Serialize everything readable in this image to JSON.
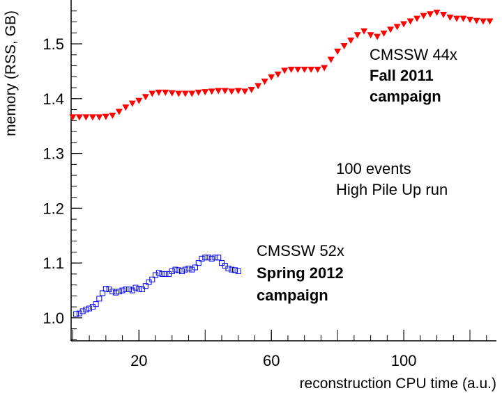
{
  "chart_data": {
    "type": "scatter",
    "x_label": "reconstruction CPU time (a.u.)",
    "y_label": "memory (RSS, GB)",
    "xlim": [
      -0.5,
      128
    ],
    "ylim": [
      0.958,
      1.58
    ],
    "xticks": [
      20,
      60,
      100
    ],
    "yticks": [
      {
        "value": 1,
        "label": "1.0"
      },
      1.1,
      1.2,
      1.3,
      1.4,
      1.5
    ],
    "annotations": [
      {
        "text": "CMSSW 44x"
      },
      {
        "text": "Fall 2011"
      },
      {
        "text": "campaign"
      },
      {
        "text": "100 events"
      },
      {
        "text": "High Pile Up run"
      },
      {
        "text": "CMSSW 52x"
      },
      {
        "text": "Spring 2012"
      },
      {
        "text": "campaign"
      }
    ],
    "series": [
      {
        "color": "#ff0000",
        "marker": "triangle-down",
        "x": [
          0,
          2,
          4,
          6,
          8,
          10,
          12,
          14,
          16,
          18,
          20,
          22,
          24,
          26,
          28,
          30,
          32,
          34,
          36,
          38,
          40,
          42,
          44,
          46,
          48,
          50,
          52,
          54,
          56,
          58,
          60,
          62,
          64,
          66,
          68,
          70,
          72,
          74,
          76,
          78,
          80,
          82,
          84,
          86,
          88,
          90,
          92,
          94,
          96,
          98,
          100,
          102,
          104,
          106,
          108,
          110,
          112,
          114,
          116,
          118,
          120,
          122,
          124,
          126
        ],
        "values": [
          1.365,
          1.365,
          1.365,
          1.365,
          1.365,
          1.366,
          1.368,
          1.375,
          1.383,
          1.39,
          1.395,
          1.402,
          1.408,
          1.41,
          1.41,
          1.409,
          1.408,
          1.408,
          1.408,
          1.41,
          1.411,
          1.412,
          1.413,
          1.413,
          1.412,
          1.413,
          1.412,
          1.415,
          1.422,
          1.43,
          1.438,
          1.443,
          1.45,
          1.452,
          1.452,
          1.452,
          1.452,
          1.452,
          1.455,
          1.47,
          1.485,
          1.495,
          1.505,
          1.515,
          1.522,
          1.515,
          1.512,
          1.518,
          1.525,
          1.53,
          1.535,
          1.54,
          1.545,
          1.55,
          1.553,
          1.556,
          1.552,
          1.547,
          1.545,
          1.545,
          1.543,
          1.541,
          1.54,
          1.54
        ]
      },
      {
        "color": "#0000ee",
        "marker": "square-open",
        "x": [
          1,
          2,
          3,
          4,
          5,
          6,
          7,
          8,
          9,
          10,
          11,
          12,
          13,
          14,
          15,
          16,
          17,
          18,
          19,
          20,
          21,
          22,
          23,
          24,
          25,
          26,
          27,
          28,
          29,
          30,
          31,
          32,
          33,
          34,
          35,
          36,
          37,
          38,
          39,
          40,
          41,
          42,
          43,
          44,
          45,
          46,
          47,
          48,
          49,
          50
        ],
        "values": [
          1.007,
          1.008,
          1.012,
          1.015,
          1.017,
          1.02,
          1.025,
          1.035,
          1.045,
          1.053,
          1.052,
          1.048,
          1.046,
          1.048,
          1.05,
          1.052,
          1.052,
          1.05,
          1.055,
          1.053,
          1.052,
          1.058,
          1.065,
          1.07,
          1.078,
          1.082,
          1.08,
          1.08,
          1.08,
          1.085,
          1.088,
          1.087,
          1.085,
          1.088,
          1.09,
          1.088,
          1.092,
          1.1,
          1.108,
          1.11,
          1.11,
          1.108,
          1.11,
          1.11,
          1.1,
          1.095,
          1.09,
          1.088,
          1.087,
          1.085
        ]
      }
    ]
  }
}
